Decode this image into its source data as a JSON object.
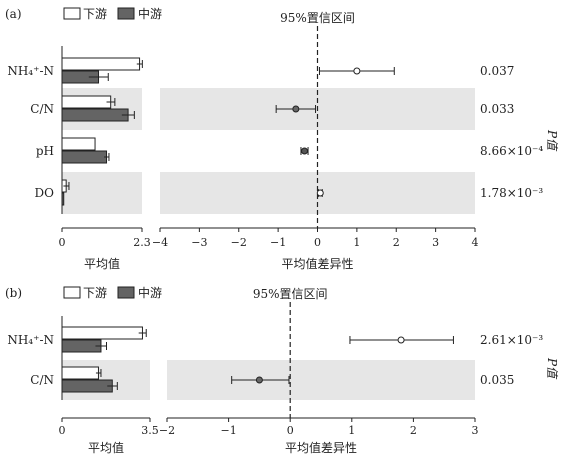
{
  "chart_data": [
    {
      "panel_label": "(a)",
      "type": "bar",
      "categories": [
        "NH₄⁺-N",
        "C/N",
        "pH",
        "DO"
      ],
      "series": [
        {
          "name": "下游",
          "values": [
            2.23,
            1.4,
            0.95,
            0.12
          ],
          "errors": [
            0.08,
            0.12,
            0.0,
            0.08
          ]
        },
        {
          "name": "中游",
          "values": [
            1.05,
            1.9,
            1.28,
            0.05
          ],
          "errors": [
            0.28,
            0.18,
            0.07,
            0.0
          ]
        }
      ],
      "bar_xlabel": "平均值",
      "bar_xlim": [
        0,
        2.3
      ],
      "bar_ticks": [
        "0",
        "2.3"
      ],
      "ci_title": "95%置信区间",
      "ci_xlabel": "平均值差异性",
      "ci_xlim": [
        -4,
        4
      ],
      "ci_ticks": [
        "−4",
        "−3",
        "−2",
        "−1",
        "0",
        "1",
        "2",
        "3",
        "4"
      ],
      "diff": [
        {
          "mean": 1.0,
          "low": 0.05,
          "high": 1.95,
          "fill": "#ffffff"
        },
        {
          "mean": -0.55,
          "low": -1.05,
          "high": -0.05,
          "fill": "#666666"
        },
        {
          "mean": -0.33,
          "low": -0.42,
          "high": -0.24,
          "fill": "#555555"
        },
        {
          "mean": 0.07,
          "low": 0.02,
          "high": 0.12,
          "fill": "#ffffff"
        }
      ],
      "pvalues": [
        "0.037",
        "0.033",
        "8.66×10⁻⁴",
        "1.78×10⁻³"
      ],
      "p_label": "P值"
    },
    {
      "panel_label": "(b)",
      "type": "bar",
      "categories": [
        "NH₄⁺-N",
        "C/N"
      ],
      "series": [
        {
          "name": "下游",
          "values": [
            3.2,
            1.45
          ],
          "errors": [
            0.15,
            0.1
          ]
        },
        {
          "name": "中游",
          "values": [
            1.55,
            2.0
          ],
          "errors": [
            0.22,
            0.2
          ]
        }
      ],
      "bar_xlabel": "平均值",
      "bar_xlim": [
        0,
        3.5
      ],
      "bar_ticks": [
        "0",
        "3.5"
      ],
      "ci_title": "95%置信区间",
      "ci_xlabel": "平均值差异性",
      "ci_xlim": [
        -2,
        3
      ],
      "ci_ticks": [
        "−2",
        "−1",
        "0",
        "1",
        "2",
        "3"
      ],
      "diff": [
        {
          "mean": 1.8,
          "low": 0.97,
          "high": 2.65,
          "fill": "#ffffff"
        },
        {
          "mean": -0.5,
          "low": -0.95,
          "high": -0.02,
          "fill": "#666666"
        }
      ],
      "pvalues": [
        "2.61×10⁻³",
        "0.035"
      ],
      "p_label": "P值"
    }
  ],
  "colors": {
    "downstream": "#ffffff",
    "midstream": "#646464",
    "shade": "#e6e6e6",
    "stroke": "#222222"
  }
}
